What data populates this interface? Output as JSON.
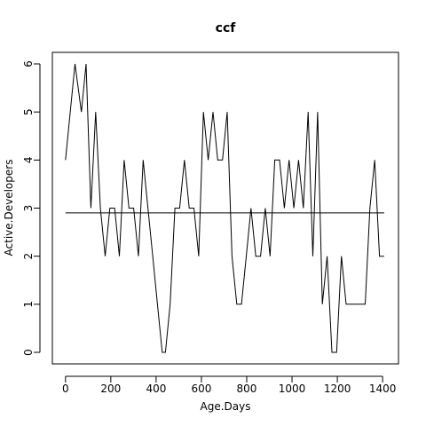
{
  "chart_data": {
    "type": "line",
    "title": "ccf",
    "xlabel": "Age.Days",
    "ylabel": "Active.Developers",
    "xlim": [
      -58,
      1470
    ],
    "ylim": [
      -0.24,
      6.24
    ],
    "xticks": [
      0,
      200,
      400,
      600,
      800,
      1000,
      1200,
      1400
    ],
    "yticks": [
      0,
      1,
      2,
      3,
      4,
      5,
      6
    ],
    "grid": false,
    "legend": "none",
    "series": [
      {
        "x": [
          0,
          42,
          70,
          91,
          112,
          133,
          154,
          175,
          196,
          217,
          238,
          259,
          280,
          301,
          322,
          343,
          364,
          385,
          406,
          427,
          441,
          462,
          483,
          504,
          525,
          546,
          567,
          588,
          609,
          630,
          651,
          672,
          693,
          714,
          735,
          756,
          777,
          798,
          819,
          840,
          861,
          882,
          903,
          924,
          945,
          966,
          987,
          1008,
          1029,
          1050,
          1071,
          1092,
          1113,
          1134,
          1155,
          1176,
          1197,
          1218,
          1239,
          1260,
          1281,
          1302,
          1323,
          1344,
          1365,
          1386,
          1407
        ],
        "values": [
          4,
          6,
          5,
          6,
          3,
          5,
          3,
          2,
          3,
          3,
          2,
          4,
          3,
          3,
          2,
          4,
          3,
          2,
          1,
          0,
          0,
          1,
          3,
          3,
          4,
          3,
          3,
          2,
          5,
          4,
          5,
          4,
          4,
          5,
          2,
          1,
          1,
          2,
          3,
          2,
          2,
          3,
          2,
          4,
          4,
          3,
          4,
          3,
          4,
          3,
          5,
          2,
          5,
          1,
          2,
          0,
          0,
          2,
          1,
          1,
          1,
          1,
          1,
          3,
          4,
          2,
          2
        ]
      }
    ],
    "hline": {
      "x": [
        0,
        1407
      ],
      "y": 2.9
    }
  }
}
